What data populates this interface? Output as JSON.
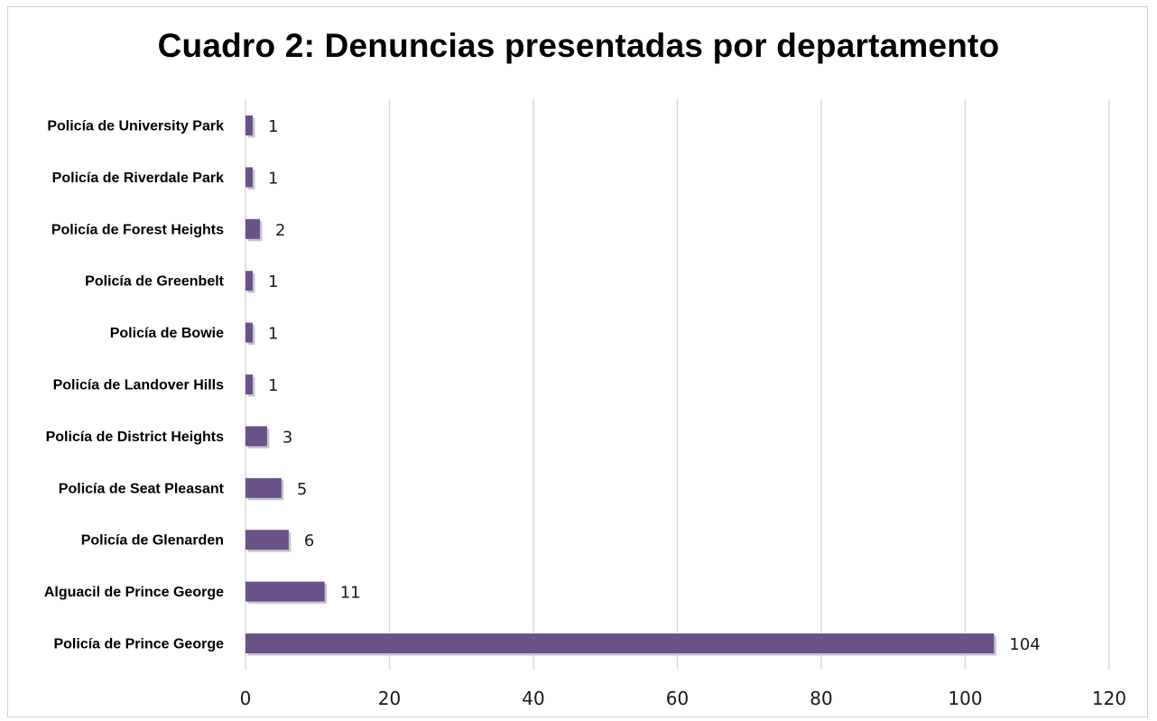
{
  "chart_data": {
    "type": "bar",
    "orientation": "horizontal",
    "title": "Cuadro 2: Denuncias presentadas por departamento",
    "xlim": [
      0,
      120
    ],
    "x_ticks": [
      "0",
      "20",
      "40",
      "60",
      "80",
      "100",
      "120"
    ],
    "grid": "vertical",
    "bar_color": "#6a5288",
    "categories": [
      "Policía de University Park",
      "Policía de Riverdale Park",
      "Policía de Forest Heights",
      "Policía de Greenbelt",
      "Policía de Bowie",
      "Policía de Landover Hills",
      "Policía de District Heights",
      "Policía de Seat Pleasant",
      "Policía de Glenarden",
      "Alguacil de Prince George",
      "Policía de Prince George"
    ],
    "values": [
      1,
      1,
      2,
      1,
      1,
      1,
      3,
      5,
      6,
      11,
      104
    ],
    "value_labels": [
      "1",
      "1",
      "2",
      "1",
      "1",
      "1",
      "3",
      "5",
      "6",
      "11",
      "104"
    ]
  }
}
